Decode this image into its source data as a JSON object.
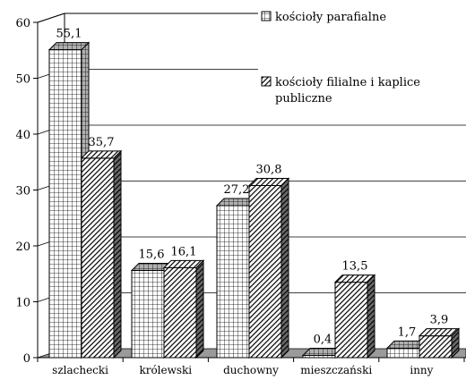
{
  "chart_data": {
    "type": "bar",
    "categories": [
      "szlachecki",
      "królewski",
      "duchowny",
      "mieszczański",
      "inny"
    ],
    "series": [
      {
        "name": "kościoły parafialne",
        "values": [
          55.1,
          15.6,
          27.2,
          0.4,
          1.7
        ],
        "labels": [
          "55,1",
          "15,6",
          "27,2",
          "0,4",
          "1,7"
        ],
        "pattern": "grid"
      },
      {
        "name": "kościoły filialne i kaplice publiczne",
        "values": [
          35.7,
          16.1,
          30.8,
          13.5,
          3.9
        ],
        "labels": [
          "35,7",
          "16,1",
          "30,8",
          "13,5",
          "3,9"
        ],
        "pattern": "hatch"
      }
    ],
    "yticks": [
      "0",
      "10",
      "20",
      "30",
      "40",
      "50",
      "60"
    ],
    "ylim": [
      0,
      60
    ],
    "grid": true,
    "legend": "top-right",
    "title": "",
    "xlabel": "",
    "ylabel": ""
  }
}
